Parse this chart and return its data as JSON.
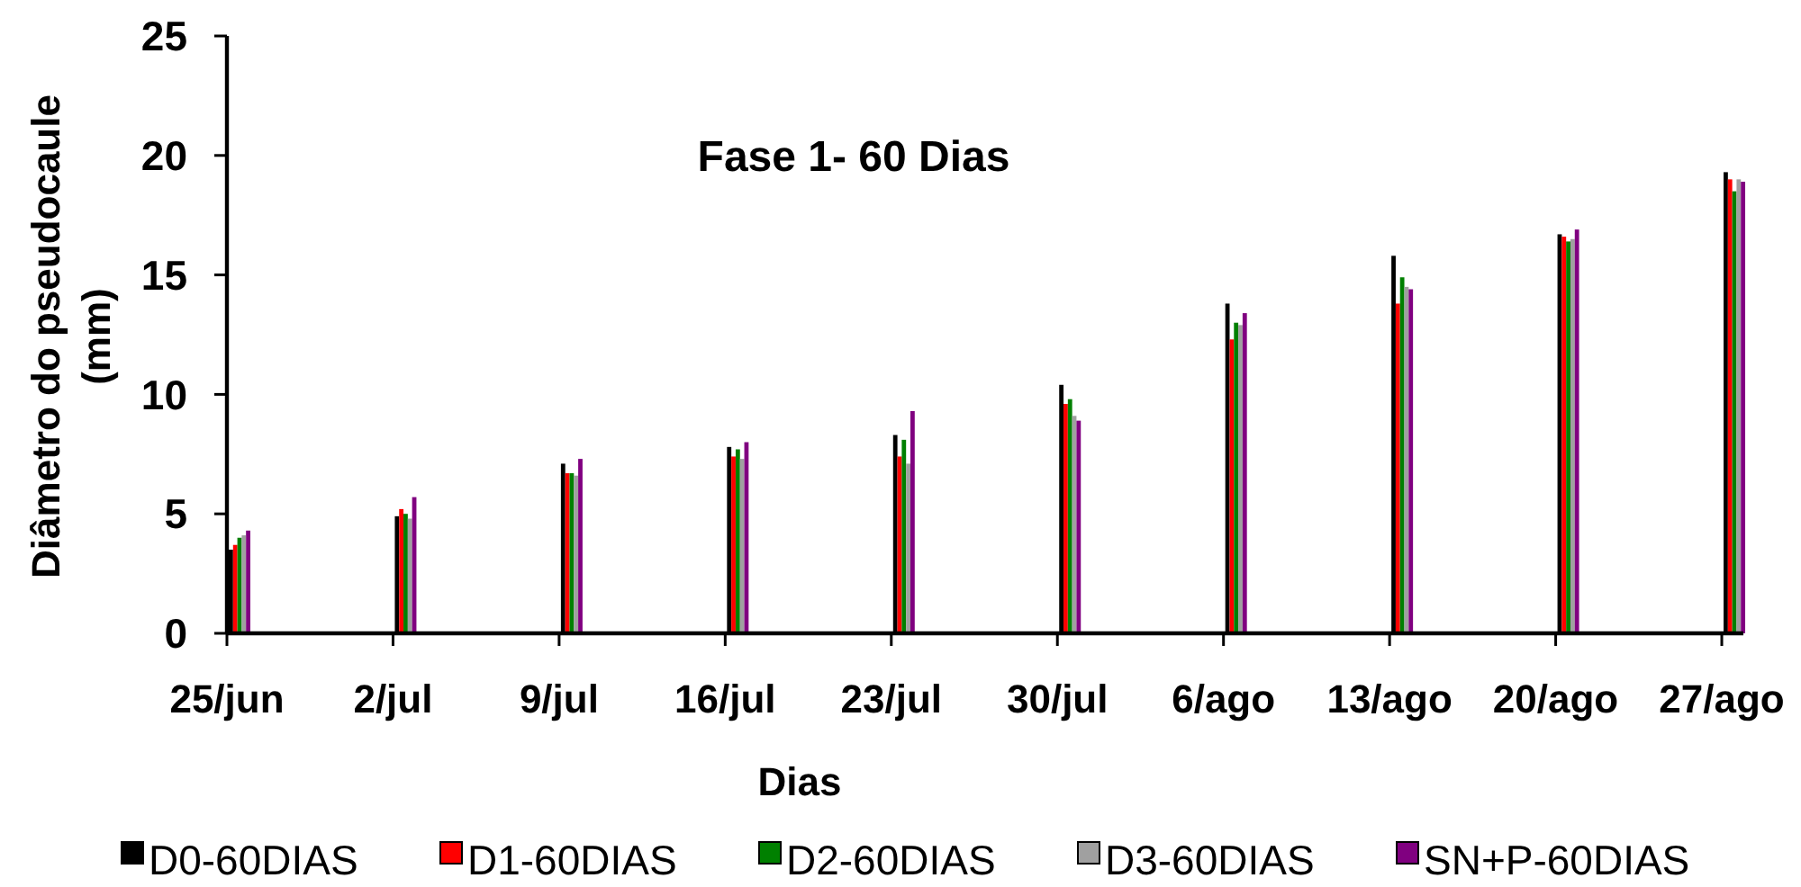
{
  "chart_data": {
    "type": "bar",
    "title": "Fase 1- 60 Dias",
    "xlabel": "Dias",
    "ylabel": "Diâmetro do pseudocaule\n(mm)",
    "categories": [
      "25/jun",
      "2/jul",
      "9/jul",
      "16/jul",
      "23/jul",
      "30/jul",
      "6/ago",
      "13/ago",
      "20/ago",
      "27/ago"
    ],
    "series": [
      {
        "name": "D0-60DIAS",
        "color": "#000000",
        "values": [
          3.5,
          4.9,
          7.1,
          7.8,
          8.3,
          10.4,
          13.8,
          15.8,
          16.7,
          19.3
        ]
      },
      {
        "name": "D1-60DIAS",
        "color": "#ff0000",
        "values": [
          3.7,
          5.2,
          6.7,
          7.4,
          7.4,
          9.6,
          12.3,
          13.8,
          16.6,
          19.0
        ]
      },
      {
        "name": "D2-60DIAS",
        "color": "#008000",
        "values": [
          4.0,
          5.0,
          6.7,
          7.7,
          8.1,
          9.8,
          13.0,
          14.9,
          16.4,
          18.5
        ]
      },
      {
        "name": "D3-60DIAS",
        "color": "#a0a0a0",
        "values": [
          4.1,
          4.8,
          6.6,
          7.3,
          7.1,
          9.1,
          12.9,
          14.5,
          16.5,
          19.0
        ]
      },
      {
        "name": "SN+P-60DIAS",
        "color": "#800080",
        "values": [
          4.3,
          5.7,
          7.3,
          8.0,
          9.3,
          8.9,
          13.4,
          14.4,
          16.9,
          18.9
        ]
      }
    ],
    "ylim": [
      0,
      25
    ],
    "yticks": [
      0,
      5,
      10,
      15,
      20,
      25
    ],
    "legend": "bottom"
  }
}
